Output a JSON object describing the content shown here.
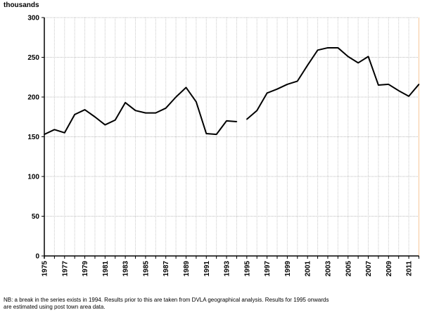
{
  "chart_data": {
    "type": "line",
    "ylabel": "thousands",
    "ylim": [
      0,
      300
    ],
    "yticks": [
      0,
      50,
      100,
      150,
      200,
      250,
      300
    ],
    "xlim": [
      1975,
      2012
    ],
    "xticks": [
      1975,
      1977,
      1979,
      1981,
      1983,
      1985,
      1987,
      1989,
      1991,
      1993,
      1995,
      1997,
      1999,
      2001,
      2003,
      2005,
      2007,
      2009,
      2011
    ],
    "grid": true,
    "line_color": "#000000",
    "series": [
      {
        "segment": "1975-1994",
        "x": [
          1975,
          1976,
          1977,
          1978,
          1979,
          1980,
          1981,
          1982,
          1983,
          1984,
          1985,
          1986,
          1987,
          1988,
          1989,
          1990,
          1991,
          1992,
          1993,
          1994
        ],
        "values": [
          153,
          159,
          155,
          178,
          184,
          175,
          165,
          171,
          193,
          183,
          180,
          180,
          186,
          200,
          212,
          194,
          154,
          153,
          170,
          169
        ]
      },
      {
        "segment": "1995-2012",
        "x": [
          1995,
          1996,
          1997,
          1998,
          1999,
          2000,
          2001,
          2002,
          2003,
          2004,
          2005,
          2006,
          2007,
          2008,
          2009,
          2010,
          2011,
          2012
        ],
        "values": [
          172,
          183,
          205,
          210,
          216,
          220,
          240,
          259,
          262,
          262,
          251,
          243,
          251,
          215,
          216,
          208,
          201,
          216
        ]
      }
    ],
    "note": [
      "NB: a break in the series exists in 1994. Results prior to this are taken from DVLA geographical analysis.  Results for 1995 onwards",
      "are estimated using post town area data."
    ]
  }
}
